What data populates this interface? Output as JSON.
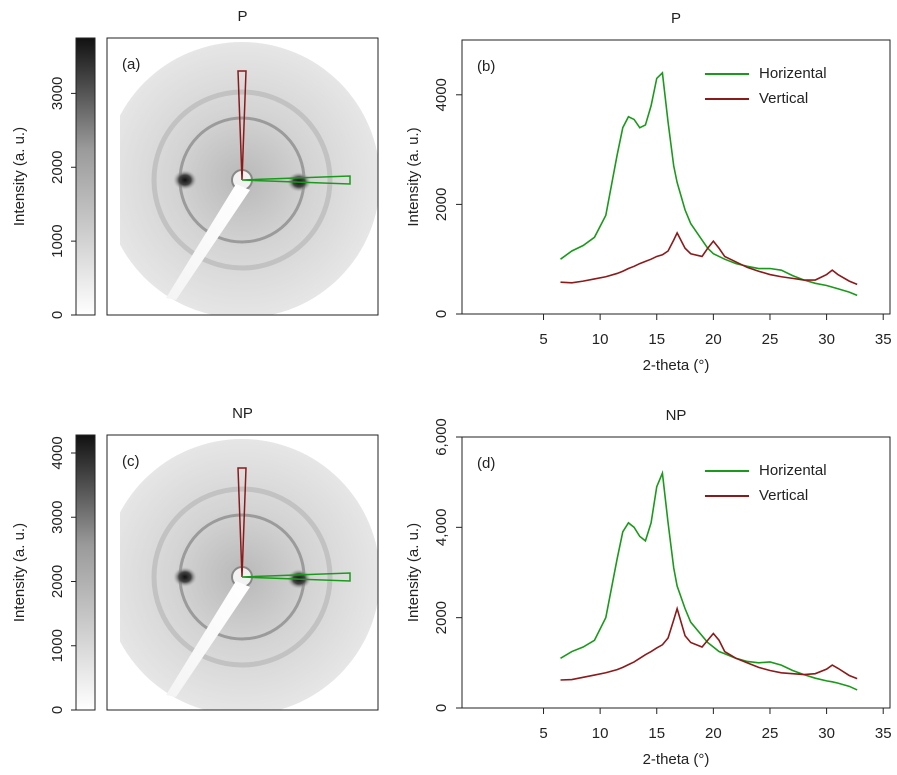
{
  "chart_data": [
    {
      "type": "image",
      "title": "P",
      "panel_label": "(a)",
      "ylabel": "Intensity (a. u.)",
      "ylim": [
        0,
        3750
      ],
      "yticks": [
        0,
        1000,
        2000,
        3000
      ]
    },
    {
      "type": "line",
      "title": "P",
      "panel_label": "(b)",
      "ylabel": "Intensity (a. u.)",
      "xlabel": "2-theta (°)",
      "xlim": [
        -2.2,
        35.6
      ],
      "xticks": [
        5,
        10,
        15,
        20,
        25,
        30,
        35
      ],
      "ylim": [
        0,
        5000
      ],
      "yticks": [
        0,
        2000,
        4000
      ],
      "legend": "upper right",
      "x": [
        6.5,
        7.5,
        8.5,
        9.5,
        10.5,
        11.5,
        12,
        12.5,
        13,
        13.5,
        14,
        14.5,
        15,
        15.5,
        16,
        16.5,
        16.8,
        17.5,
        18,
        19,
        19.5,
        20,
        20.5,
        21,
        22,
        23,
        24,
        25,
        26,
        27,
        28,
        29,
        30,
        30.5,
        31,
        32,
        32.7
      ],
      "series": [
        {
          "name": "Horizental",
          "color": "#1a9a1a",
          "values": [
            1000,
            1150,
            1250,
            1400,
            1800,
            2900,
            3400,
            3600,
            3550,
            3400,
            3450,
            3800,
            4300,
            4400,
            3500,
            2700,
            2400,
            1900,
            1650,
            1350,
            1200,
            1100,
            1050,
            1000,
            920,
            870,
            830,
            830,
            800,
            700,
            620,
            560,
            520,
            490,
            460,
            400,
            340
          ]
        },
        {
          "name": "Vertical",
          "color": "#8b1a1a",
          "values": [
            580,
            570,
            600,
            640,
            680,
            740,
            780,
            830,
            870,
            920,
            960,
            1000,
            1050,
            1080,
            1150,
            1350,
            1480,
            1200,
            1100,
            1050,
            1200,
            1330,
            1200,
            1050,
            950,
            850,
            780,
            720,
            680,
            650,
            620,
            620,
            720,
            800,
            720,
            600,
            540
          ]
        }
      ]
    },
    {
      "type": "image",
      "title": "NP",
      "panel_label": "(c)",
      "ylabel": "Intensity (a. u.)",
      "ylim": [
        0,
        4280
      ],
      "yticks": [
        0,
        1000,
        2000,
        3000,
        4000
      ]
    },
    {
      "type": "line",
      "title": "NP",
      "panel_label": "(d)",
      "ylabel": "Intensity (a. u.)",
      "xlabel": "2-theta (°)",
      "xlim": [
        -2.2,
        35.6
      ],
      "xticks": [
        5,
        10,
        15,
        20,
        25,
        30,
        35
      ],
      "ylim": [
        0,
        6000
      ],
      "yticks": [
        0,
        2000,
        {
          "value": 4000,
          "label": "4,000"
        },
        {
          "value": 6000,
          "label": "6,000"
        }
      ],
      "legend": "upper right",
      "x": [
        6.5,
        7.5,
        8.5,
        9.5,
        10.5,
        11.5,
        12,
        12.5,
        13,
        13.5,
        14,
        14.5,
        15,
        15.5,
        16,
        16.5,
        16.8,
        17.5,
        18,
        19,
        19.5,
        20,
        20.5,
        21,
        22,
        23,
        24,
        25,
        26,
        27,
        28,
        29,
        30,
        30.5,
        31,
        32,
        32.7
      ],
      "series": [
        {
          "name": "Horizental",
          "color": "#1a9a1a",
          "values": [
            1100,
            1250,
            1350,
            1500,
            2000,
            3300,
            3900,
            4100,
            4000,
            3800,
            3700,
            4100,
            4900,
            5200,
            4100,
            3100,
            2700,
            2200,
            1900,
            1600,
            1450,
            1350,
            1250,
            1200,
            1100,
            1030,
            1000,
            1020,
            950,
            830,
            740,
            660,
            600,
            580,
            550,
            480,
            400
          ]
        },
        {
          "name": "Vertical",
          "color": "#8b1a1a",
          "values": [
            620,
            630,
            680,
            730,
            780,
            850,
            900,
            960,
            1020,
            1100,
            1180,
            1250,
            1330,
            1400,
            1550,
            1950,
            2200,
            1600,
            1450,
            1350,
            1500,
            1650,
            1500,
            1250,
            1100,
            1000,
            900,
            830,
            780,
            760,
            740,
            760,
            860,
            950,
            880,
            720,
            650
          ]
        }
      ]
    }
  ]
}
